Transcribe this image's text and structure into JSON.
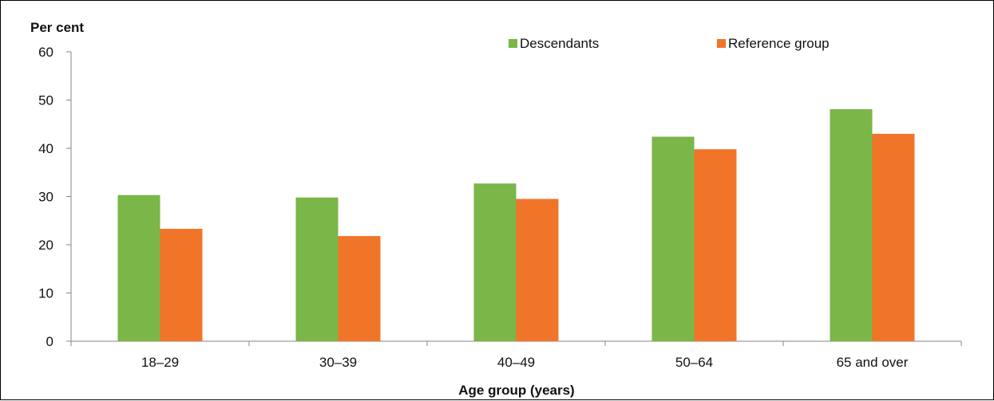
{
  "chart_data": {
    "type": "bar",
    "title": "",
    "ylabel": "Per cent",
    "xlabel": "Age group (years)",
    "categories": [
      "18–29",
      "30–39",
      "40–49",
      "50–64",
      "65 and over"
    ],
    "series": [
      {
        "name": "Descendants",
        "values": [
          30.3,
          29.8,
          32.7,
          42.4,
          48.1
        ],
        "color": "#7ab648"
      },
      {
        "name": "Reference group",
        "values": [
          23.3,
          21.8,
          29.5,
          39.8,
          43.0
        ],
        "color": "#f07528"
      }
    ],
    "ylim": [
      0,
      60
    ],
    "yticks": [
      0,
      10,
      20,
      30,
      40,
      50,
      60
    ],
    "grid": false,
    "legend_position": "top-right"
  }
}
